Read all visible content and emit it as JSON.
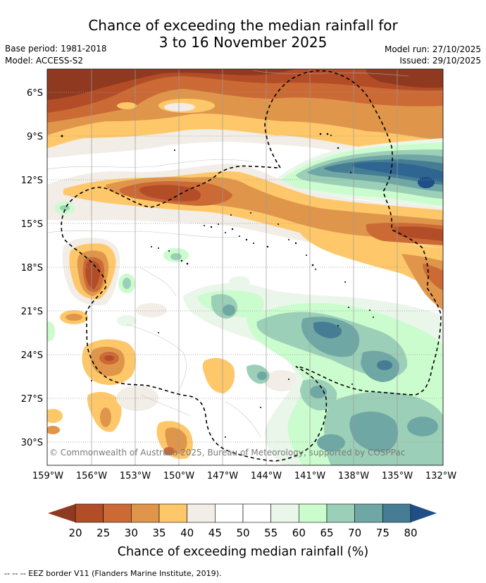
{
  "title": {
    "line1": "Chance of exceeding the median rainfall for",
    "line2": "3 to 16 November 2025"
  },
  "meta": {
    "base_period": "Base period: 1981-2018",
    "model": "Model: ACCESS-S2",
    "model_run": "Model run: 27/10/2025",
    "issued": "Issued: 29/10/2025"
  },
  "map": {
    "lat_labels": [
      "6°S",
      "9°S",
      "12°S",
      "15°S",
      "18°S",
      "21°S",
      "24°S",
      "27°S",
      "30°S"
    ],
    "lon_labels": [
      "159°W",
      "156°W",
      "153°W",
      "150°W",
      "147°W",
      "144°W",
      "141°W",
      "138°W",
      "135°W",
      "132°W"
    ],
    "copyright": "© Commonwealth of Australia 2025, Bureau of Meteorology, supported by COSPPac"
  },
  "colorbar": {
    "labels": [
      "20",
      "25",
      "30",
      "35",
      "40",
      "45",
      "50",
      "55",
      "60",
      "65",
      "70",
      "75",
      "80"
    ],
    "low_color": "#8f3a20",
    "high_color": "#1f4f86",
    "colors": [
      "#b34d28",
      "#cb6a34",
      "#e0964a",
      "#fec86a",
      "#f2ede6",
      "#ffffff",
      "#ffffff",
      "#eaf6ea",
      "#cbfcce",
      "#9ccfb7",
      "#6fa7a4",
      "#467d94"
    ],
    "title": "Chance of exceeding median rainfall (%)"
  },
  "footer": "--  --  -- EEZ border V11 (Flanders Marine Institute, 2019)."
}
